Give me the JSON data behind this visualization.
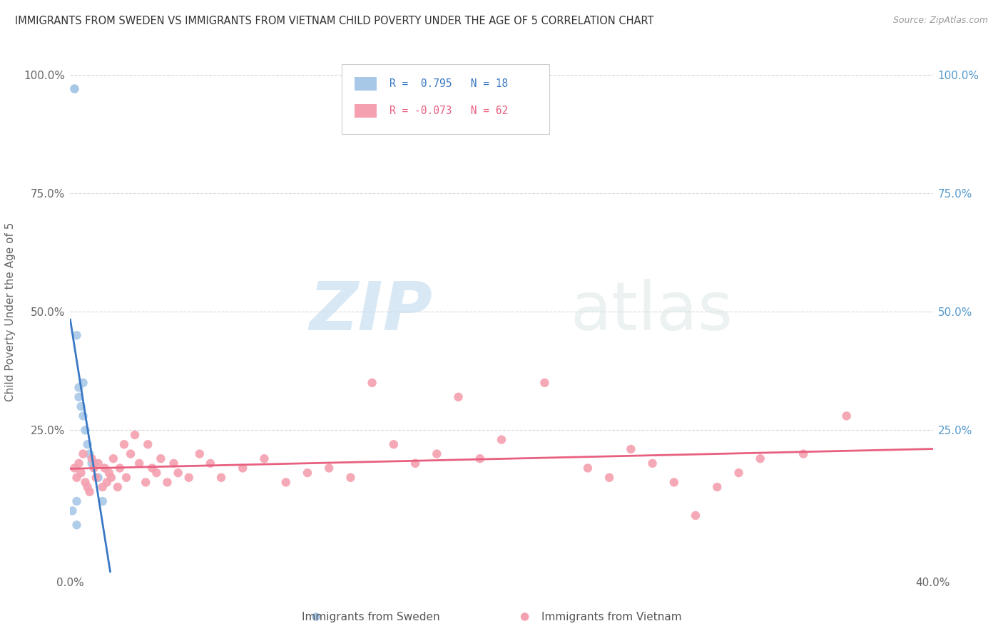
{
  "title": "IMMIGRANTS FROM SWEDEN VS IMMIGRANTS FROM VIETNAM CHILD POVERTY UNDER THE AGE OF 5 CORRELATION CHART",
  "source": "Source: ZipAtlas.com",
  "ylabel": "Child Poverty Under the Age of 5",
  "xlim": [
    0.0,
    0.4
  ],
  "ylim": [
    -0.05,
    1.05
  ],
  "sweden_R": 0.795,
  "sweden_N": 18,
  "vietnam_R": -0.073,
  "vietnam_N": 62,
  "sweden_color": "#a8c8e8",
  "vietnam_color": "#f4a0b0",
  "sweden_line_color": "#3a78c4",
  "vietnam_line_color": "#e86080",
  "sweden_points_x": [
    0.001,
    0.002,
    0.002,
    0.003,
    0.003,
    0.004,
    0.004,
    0.005,
    0.006,
    0.006,
    0.007,
    0.008,
    0.009,
    0.01,
    0.011,
    0.013,
    0.015,
    0.003
  ],
  "sweden_points_y": [
    0.08,
    0.97,
    0.97,
    0.1,
    0.45,
    0.34,
    0.32,
    0.3,
    0.35,
    0.28,
    0.25,
    0.22,
    0.2,
    0.18,
    0.18,
    0.15,
    0.1,
    0.05
  ],
  "vietnam_points_x": [
    0.002,
    0.003,
    0.004,
    0.005,
    0.006,
    0.007,
    0.008,
    0.009,
    0.01,
    0.011,
    0.012,
    0.013,
    0.015,
    0.016,
    0.017,
    0.018,
    0.019,
    0.02,
    0.022,
    0.023,
    0.025,
    0.026,
    0.028,
    0.03,
    0.032,
    0.035,
    0.036,
    0.038,
    0.04,
    0.042,
    0.045,
    0.048,
    0.05,
    0.055,
    0.06,
    0.065,
    0.07,
    0.08,
    0.09,
    0.1,
    0.11,
    0.12,
    0.13,
    0.14,
    0.15,
    0.16,
    0.17,
    0.18,
    0.19,
    0.2,
    0.22,
    0.24,
    0.26,
    0.28,
    0.3,
    0.32,
    0.34,
    0.36,
    0.27,
    0.25,
    0.31,
    0.29
  ],
  "vietnam_points_y": [
    0.17,
    0.15,
    0.18,
    0.16,
    0.2,
    0.14,
    0.13,
    0.12,
    0.19,
    0.17,
    0.15,
    0.18,
    0.13,
    0.17,
    0.14,
    0.16,
    0.15,
    0.19,
    0.13,
    0.17,
    0.22,
    0.15,
    0.2,
    0.24,
    0.18,
    0.14,
    0.22,
    0.17,
    0.16,
    0.19,
    0.14,
    0.18,
    0.16,
    0.15,
    0.2,
    0.18,
    0.15,
    0.17,
    0.19,
    0.14,
    0.16,
    0.17,
    0.15,
    0.35,
    0.22,
    0.18,
    0.2,
    0.32,
    0.19,
    0.23,
    0.35,
    0.17,
    0.21,
    0.14,
    0.13,
    0.19,
    0.2,
    0.28,
    0.18,
    0.15,
    0.16,
    0.07
  ],
  "watermark_zip": "ZIP",
  "watermark_atlas": "atlas",
  "background_color": "#ffffff",
  "grid_color": "#d8d8d8"
}
